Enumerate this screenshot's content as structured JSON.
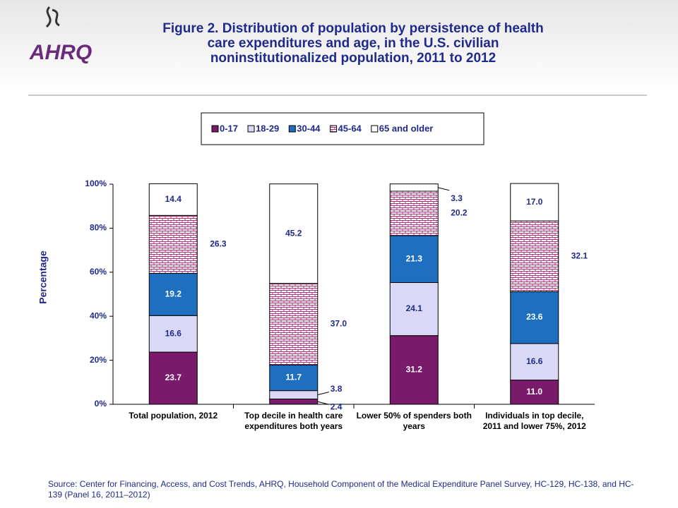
{
  "logo": {
    "text": "AHRQ"
  },
  "chart_data": {
    "type": "stacked-bar",
    "title": "Figure 2. Distribution of population by persistence of health care expenditures and age, in the U.S. civilian noninstitutionalized population, 2011 to 2012",
    "y_label": "Percentage",
    "source": "Source: Center for Financing, Access, and Cost Trends, AHRQ, Household Component of the Medical Expenditure Panel Survey, HC-129, HC-138, and HC-139 (Panel 16, 2011–2012)",
    "categories": [
      "Total population, 2012",
      "Top decile in health care expenditures both years",
      "Lower 50% of spenders both years",
      "Individuals in top decile, 2011 and lower 75%, 2012"
    ],
    "series": [
      {
        "name": "0-17",
        "color": "#7a1a6b",
        "values": [
          23.7,
          2.4,
          31.2,
          11.0
        ],
        "value_labels": [
          "23.7",
          "2.4",
          "31.2",
          "11.0"
        ]
      },
      {
        "name": "18-29",
        "color": "#d9d9f7",
        "values": [
          16.6,
          3.8,
          24.1,
          16.6
        ],
        "value_labels": [
          "16.6",
          "3.8",
          "24.1",
          "16.6"
        ]
      },
      {
        "name": "30-44",
        "color": "#1f6fc0",
        "values": [
          19.2,
          11.7,
          21.3,
          23.6
        ],
        "value_labels": [
          "19.2",
          "11.7",
          "21.3",
          "23.6"
        ]
      },
      {
        "name": "45-64",
        "color": "#b0307a",
        "hatch": true,
        "values": [
          26.3,
          37.0,
          20.2,
          32.1
        ],
        "value_labels": [
          "26.3",
          "37.0",
          "20.2",
          "32.1"
        ]
      },
      {
        "name": "65 and older",
        "color": "#ffffff",
        "values": [
          14.4,
          45.2,
          3.3,
          17.0
        ],
        "value_labels": [
          "14.4",
          "45.2",
          "3.3",
          "17.0"
        ]
      }
    ],
    "ylim": [
      0,
      100
    ],
    "yticks": [
      {
        "value": 0,
        "label": "0%"
      },
      {
        "value": 20,
        "label": "20%"
      },
      {
        "value": 40,
        "label": "40%"
      },
      {
        "value": 60,
        "label": "60%"
      },
      {
        "value": 80,
        "label": "80%"
      },
      {
        "value": 100,
        "label": "100%"
      }
    ]
  }
}
